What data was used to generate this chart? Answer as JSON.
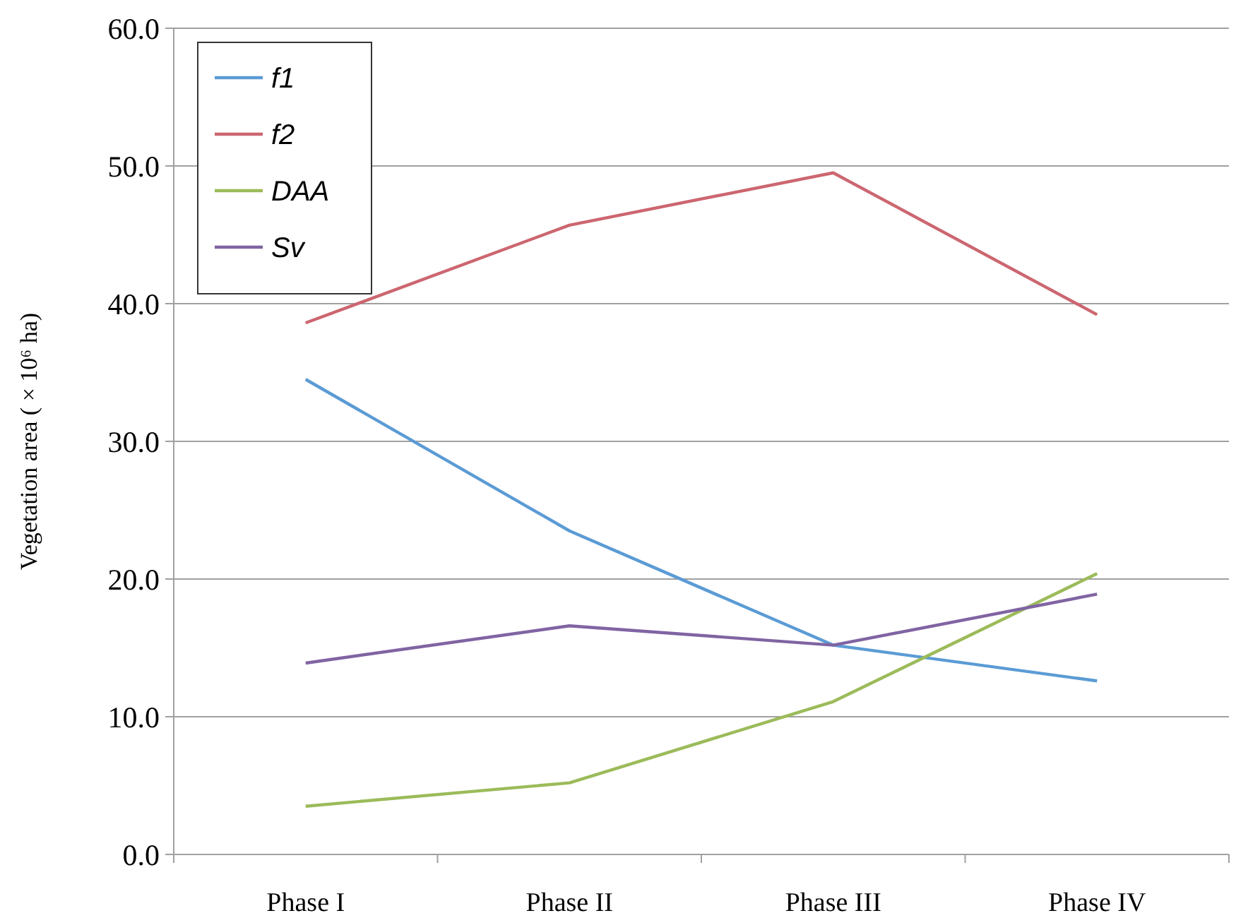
{
  "chart_data": {
    "type": "line",
    "ylabel": "Vegetation area ( × 10⁶ ha)",
    "categories": [
      "Phase I",
      "Phase II",
      "Phase III",
      "Phase IV"
    ],
    "series": [
      {
        "name": "f1",
        "color": "#5b9bd5",
        "values": [
          34.5,
          23.5,
          15.2,
          12.6
        ]
      },
      {
        "name": "f2",
        "color": "#cc6670",
        "values": [
          38.6,
          45.7,
          49.5,
          39.2
        ]
      },
      {
        "name": "DAA",
        "color": "#9bbb59",
        "values": [
          3.5,
          5.2,
          11.1,
          20.4
        ]
      },
      {
        "name": "Sv",
        "color": "#8064a2",
        "values": [
          13.9,
          16.6,
          15.2,
          18.9
        ]
      }
    ],
    "ylim": [
      0,
      60
    ],
    "yticks": [
      {
        "value": 0,
        "label": "0.0"
      },
      {
        "value": 10,
        "label": "10.0"
      },
      {
        "value": 20,
        "label": "20.0"
      },
      {
        "value": 30,
        "label": "30.0"
      },
      {
        "value": 40,
        "label": "40.0"
      },
      {
        "value": 50,
        "label": "50.0"
      },
      {
        "value": 60,
        "label": "60.0"
      }
    ],
    "grid": "y",
    "legend": "top left",
    "marker": "none",
    "line_style": "solid"
  }
}
